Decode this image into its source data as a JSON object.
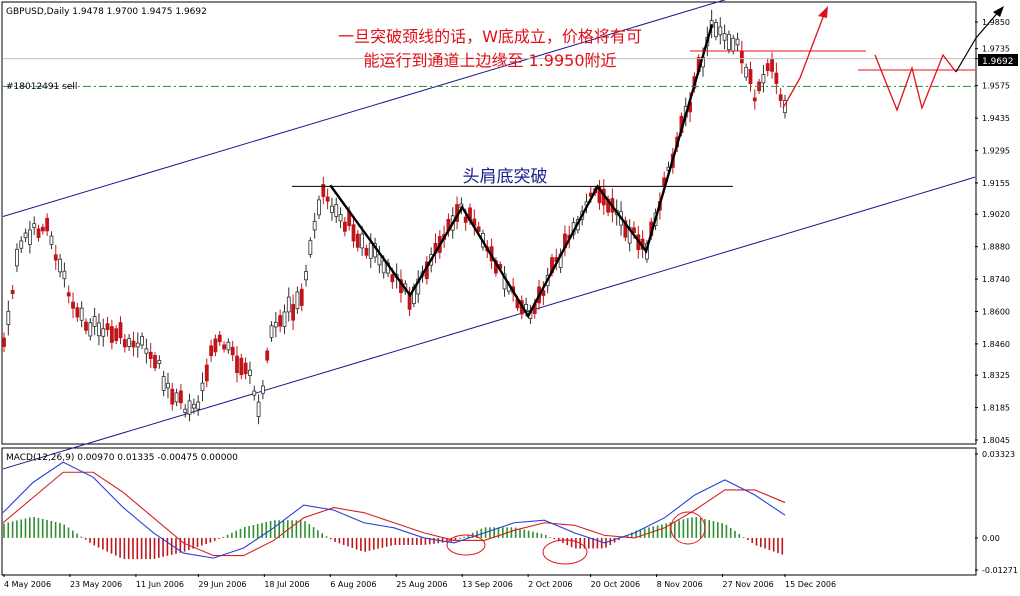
{
  "window": {
    "symbol_info": "GBPUSD,Daily  1.9478 1.9700 1.9475 1.9692",
    "sell_label": "#18012491 sell"
  },
  "annotations": {
    "headline_1": "一旦突破颈线的话，W底成立，价格将有可",
    "headline_2": "能运行到通道上边缘至  1.9950附近",
    "pattern_label": "头肩底突破"
  },
  "colors": {
    "bear_candle": "#c0151a",
    "bull_candle": "#2f2f2f",
    "channel": "#1a1a8c",
    "annotation_text": "#e0101a",
    "pattern_text": "#1a1a8c",
    "macd_line": "#2a3fd4",
    "signal_line": "#d42020",
    "hist_pos": "#2f8f2f",
    "sell_line": "#2f8f2f",
    "current_price_bg": "#000000"
  },
  "chart_data": [
    {
      "type": "candlestick",
      "symbol": "GBPUSD",
      "timeframe": "Daily",
      "ohlc_last": {
        "open": 1.9478,
        "high": 1.97,
        "low": 1.9475,
        "close": 1.9692
      },
      "current_price": "1.9692",
      "sell_level": 1.9572,
      "neckline": 1.914,
      "ylim": [
        1.8045,
        1.985
      ],
      "y_ticks": [
        "1.9850",
        "1.9735",
        "1.9692",
        "1.9575",
        "1.9435",
        "1.9295",
        "1.9155",
        "1.9020",
        "1.8880",
        "1.8740",
        "1.8600",
        "1.8460",
        "1.8325",
        "1.8185",
        "1.8045"
      ],
      "x_ticks": [
        "4 May 2006",
        "23 May 2006",
        "11 Jun 2006",
        "29 Jun 2006",
        "18 Jul 2006",
        "6 Aug 2006",
        "25 Aug 2006",
        "13 Sep 2006",
        "2 Oct 2006",
        "20 Oct 2006",
        "8 Nov 2006",
        "27 Nov 2006",
        "15 Dec 2006"
      ],
      "channel_upper": [
        {
          "x": 0,
          "y": 1.901
        },
        {
          "x": 1,
          "y": 2.027
        }
      ],
      "channel_lower": [
        {
          "x": 0,
          "y": 1.792
        },
        {
          "x": 1,
          "y": 1.918
        }
      ],
      "pattern_points": [
        {
          "date": "6 Aug 2006",
          "y": 1.9145
        },
        {
          "date": "29 Aug 2006",
          "y": 1.867
        },
        {
          "date": "13 Sep 2006",
          "y": 1.905
        },
        {
          "date": "2 Oct 2006",
          "y": 1.858
        },
        {
          "date": "22 Oct 2006",
          "y": 1.914
        },
        {
          "date": "5 Nov 2006",
          "y": 1.886
        },
        {
          "date": "24 Nov 2006",
          "y": 1.984
        }
      ]
    },
    {
      "type": "line",
      "title": "MACD(12,26,9) 0.00970 0.01335 -0.00475 0.00000",
      "ylim": [
        -0.01271,
        0.03323
      ],
      "y_ticks": [
        "0.03323",
        "0.00",
        "-0.01271"
      ],
      "series": [
        {
          "name": "MACD",
          "values": [
            0.01,
            0.022,
            0.03,
            0.024,
            0.012,
            0.002,
            -0.006,
            -0.008,
            -0.004,
            0.004,
            0.013,
            0.011,
            0.006,
            0.004,
            0.0,
            -0.002,
            0.002,
            0.006,
            0.007,
            0.002,
            -0.002,
            0.002,
            0.008,
            0.017,
            0.023,
            0.017,
            0.009
          ]
        },
        {
          "name": "Signal",
          "values": [
            0.006,
            0.016,
            0.026,
            0.026,
            0.018,
            0.008,
            -0.002,
            -0.007,
            -0.007,
            -0.001,
            0.008,
            0.012,
            0.01,
            0.006,
            0.002,
            -0.001,
            -0.001,
            0.003,
            0.006,
            0.005,
            0.001,
            0.0,
            0.004,
            0.011,
            0.019,
            0.019,
            0.014
          ]
        }
      ]
    }
  ]
}
